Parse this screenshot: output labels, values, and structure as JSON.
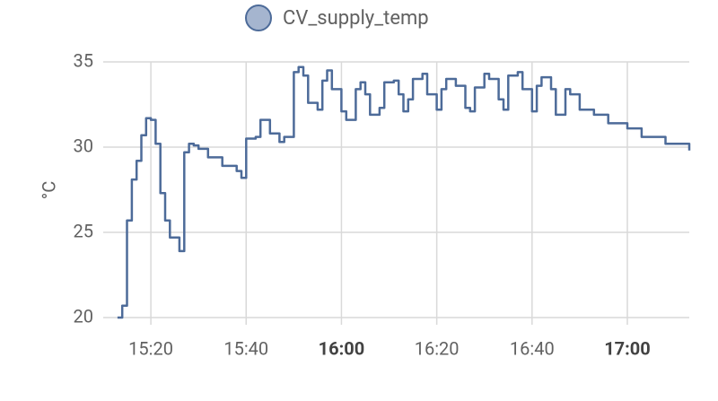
{
  "chart_data": {
    "type": "line",
    "y_label": "°C",
    "x": [
      "15:13",
      "15:14",
      "15:15",
      "15:16",
      "15:17",
      "15:18",
      "15:19",
      "15:20",
      "15:21",
      "15:22",
      "15:23",
      "15:24",
      "15:26",
      "15:27",
      "15:28",
      "15:29",
      "15:30",
      "15:32",
      "15:35",
      "15:38",
      "15:39",
      "15:40",
      "15:42",
      "15:43",
      "15:45",
      "15:47",
      "15:48",
      "15:50",
      "15:51",
      "15:52",
      "15:53",
      "15:55",
      "15:56",
      "15:57",
      "15:58",
      "16:00",
      "16:01",
      "16:03",
      "16:04",
      "16:05",
      "16:06",
      "16:08",
      "16:09",
      "16:11",
      "16:12",
      "16:13",
      "16:14",
      "16:15",
      "16:17",
      "16:18",
      "16:20",
      "16:21",
      "16:22",
      "16:24",
      "16:26",
      "16:27",
      "16:28",
      "16:30",
      "16:31",
      "16:33",
      "16:34",
      "16:35",
      "16:37",
      "16:38",
      "16:40",
      "16:41",
      "16:42",
      "16:44",
      "16:45",
      "16:47",
      "16:48",
      "16:50",
      "16:53",
      "16:56",
      "17:00",
      "17:03",
      "17:08",
      "17:13"
    ],
    "series": [
      {
        "name": "CV_supply_temp",
        "color": "#4d6b99",
        "values": [
          20.0,
          20.7,
          25.7,
          28.1,
          29.2,
          30.7,
          31.7,
          31.6,
          30.2,
          27.3,
          25.7,
          24.7,
          23.9,
          29.7,
          30.2,
          30.1,
          29.9,
          29.4,
          28.9,
          28.6,
          28.2,
          30.5,
          30.6,
          31.6,
          30.8,
          30.3,
          30.6,
          34.4,
          34.7,
          34.2,
          32.6,
          32.2,
          33.9,
          34.5,
          33.4,
          32.1,
          31.6,
          33.4,
          33.8,
          33.1,
          31.9,
          32.3,
          33.8,
          33.9,
          33.1,
          32.1,
          32.8,
          34.0,
          34.3,
          33.1,
          32.2,
          33.4,
          34.0,
          33.6,
          32.3,
          32.1,
          33.5,
          34.3,
          34.0,
          32.8,
          32.2,
          34.2,
          34.4,
          33.4,
          32.1,
          33.6,
          34.1,
          33.4,
          31.9,
          33.4,
          33.1,
          32.2,
          31.9,
          31.4,
          31.1,
          30.6,
          30.2,
          29.8
        ]
      }
    ],
    "xlim": [
      "15:10",
      "17:13"
    ],
    "xticks": [
      "15:20",
      "15:40",
      "16:00",
      "16:20",
      "16:40",
      "17:00"
    ],
    "ylim": [
      20,
      35
    ],
    "yticks": [
      20,
      25,
      30,
      35
    ],
    "grid": true
  }
}
